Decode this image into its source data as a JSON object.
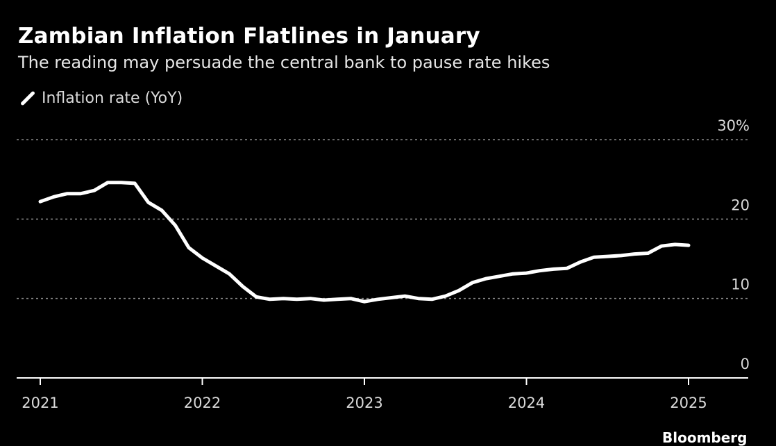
{
  "chart_data": {
    "type": "line",
    "title": "Zambian Inflation Flatlines in January",
    "subtitle": "The reading may persuade the central bank to pause rate hikes",
    "series": [
      {
        "name": "Inflation rate (YoY)",
        "color": "#ffffff",
        "x": [
          "2021-01",
          "2021-02",
          "2021-03",
          "2021-04",
          "2021-05",
          "2021-06",
          "2021-07",
          "2021-08",
          "2021-09",
          "2021-10",
          "2021-11",
          "2021-12",
          "2022-01",
          "2022-02",
          "2022-03",
          "2022-04",
          "2022-05",
          "2022-06",
          "2022-07",
          "2022-08",
          "2022-09",
          "2022-10",
          "2022-11",
          "2022-12",
          "2023-01",
          "2023-02",
          "2023-03",
          "2023-04",
          "2023-05",
          "2023-06",
          "2023-07",
          "2023-08",
          "2023-09",
          "2023-10",
          "2023-11",
          "2023-12",
          "2024-01",
          "2024-02",
          "2024-03",
          "2024-04",
          "2024-05",
          "2024-06",
          "2024-07",
          "2024-08",
          "2024-09",
          "2024-10",
          "2024-11",
          "2024-12",
          "2025-01"
        ],
        "values": [
          22.2,
          22.8,
          23.2,
          23.2,
          23.6,
          24.6,
          24.6,
          24.5,
          22.1,
          21.1,
          19.2,
          16.4,
          15.1,
          14.1,
          13.1,
          11.5,
          10.2,
          9.9,
          10.0,
          9.9,
          10.0,
          9.8,
          9.9,
          10.0,
          9.6,
          9.9,
          10.1,
          10.3,
          10.0,
          9.9,
          10.3,
          11.0,
          12.0,
          12.5,
          12.8,
          13.1,
          13.2,
          13.5,
          13.7,
          13.8,
          14.6,
          15.2,
          15.3,
          15.4,
          15.6,
          15.7,
          16.6,
          16.8,
          16.7
        ]
      }
    ],
    "y_ticks": [
      "0",
      "10",
      "20",
      "30%"
    ],
    "x_ticks": [
      "2021",
      "2022",
      "2023",
      "2024",
      "2025"
    ],
    "ylim": [
      0,
      30
    ],
    "grid": true,
    "legend_position": "top-left"
  },
  "source_label": "Bloomberg"
}
